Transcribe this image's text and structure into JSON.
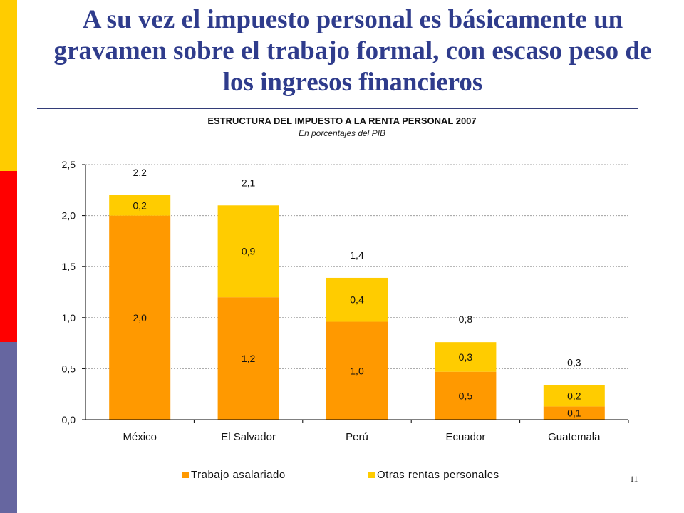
{
  "slide": {
    "title": "A su vez el impuesto personal es básicamente un gravamen sobre el trabajo formal, con escaso peso de los ingresos financieros",
    "page_number": "11",
    "accent_colors": [
      "#ffcc00",
      "#ff0000",
      "#6666a0"
    ]
  },
  "chart_data": {
    "type": "bar",
    "stacked": true,
    "title": "ESTRUCTURA DEL IMPUESTO A LA RENTA PERSONAL 2007",
    "subtitle": "En porcentajes del PIB",
    "categories": [
      "México",
      "El Salvador",
      "Perú",
      "Ecuador",
      "Guatemala"
    ],
    "series": [
      {
        "name": "Trabajo asalariado",
        "color": "#ff9900",
        "values": [
          2.0,
          1.2,
          0.96,
          0.47,
          0.13
        ],
        "labels": [
          "2,0",
          "1,2",
          "1,0",
          "0,5",
          "0,1"
        ]
      },
      {
        "name": "Otras rentas personales",
        "color": "#ffcc00",
        "values": [
          0.2,
          0.9,
          0.43,
          0.29,
          0.21
        ],
        "labels": [
          "0,2",
          "0,9",
          "0,4",
          "0,3",
          "0,2"
        ]
      }
    ],
    "totals": [
      "2,2",
      "2,1",
      "1,4",
      "0,8",
      "0,3"
    ],
    "y_ticks": [
      "0,0",
      "0,5",
      "1,0",
      "1,5",
      "2,0",
      "2,5"
    ],
    "y_tick_values": [
      0,
      0.5,
      1.0,
      1.5,
      2.0,
      2.5
    ],
    "ylim": [
      0,
      2.5
    ],
    "grid": true,
    "legend_position": "bottom"
  }
}
